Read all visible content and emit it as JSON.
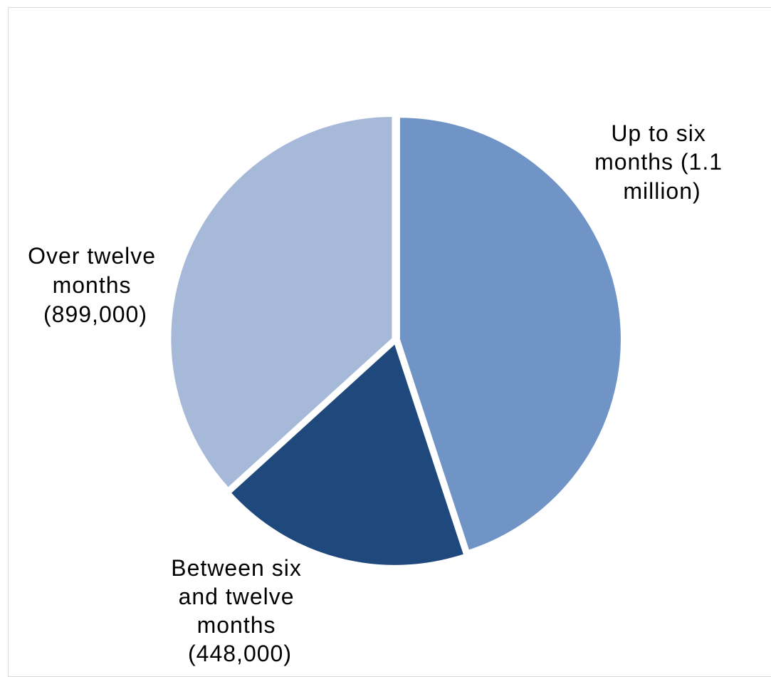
{
  "chart_data": {
    "type": "pie",
    "title": "",
    "slices": [
      {
        "label": "Up to six months (1.1 million)",
        "label_lines": [
          "Up to six",
          "months (1.1",
          "million)"
        ],
        "value": 1100000,
        "color": "#7094c6"
      },
      {
        "label": "Between six and twelve months (448,000)",
        "label_lines": [
          "Between six",
          "and twelve",
          "months",
          "(448,000)"
        ],
        "value": 448000,
        "color": "#1f487c"
      },
      {
        "label": "Over twelve months (899,000)",
        "label_lines": [
          "Over twelve",
          "months",
          "(899,000)"
        ],
        "value": 899000,
        "color": "#a6b9d9"
      }
    ],
    "start_angle_deg": 0,
    "direction": "clockwise",
    "legend": "none",
    "data_labels": "outside"
  }
}
